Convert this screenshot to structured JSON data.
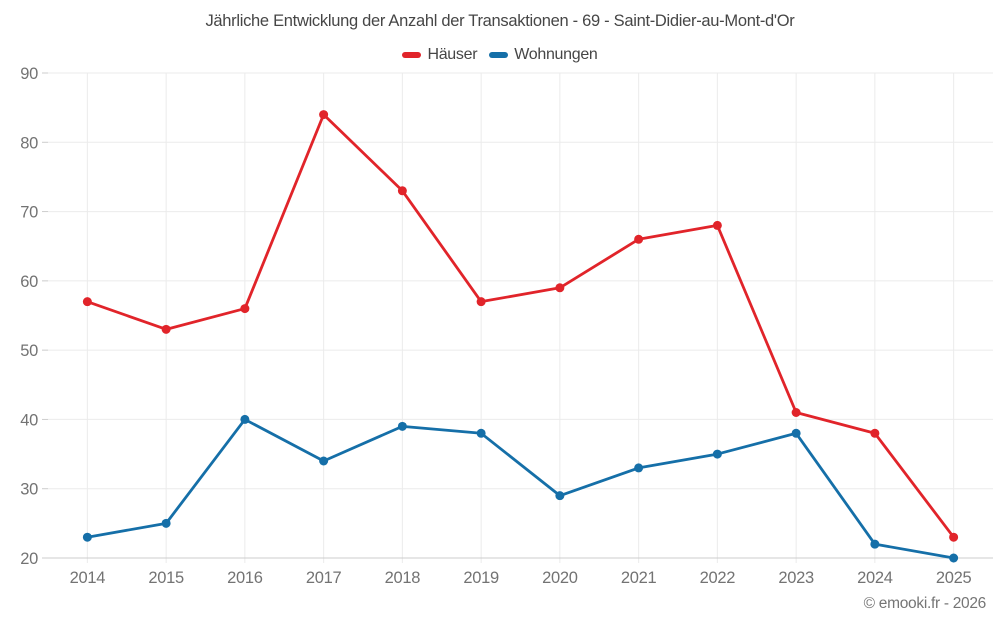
{
  "chart_data": {
    "type": "line",
    "title": "Jährliche Entwicklung der Anzahl der Transaktionen - 69 - Saint-Didier-au-Mont-d'Or",
    "categories": [
      "2014",
      "2015",
      "2016",
      "2017",
      "2018",
      "2019",
      "2020",
      "2021",
      "2022",
      "2023",
      "2024",
      "2025"
    ],
    "series": [
      {
        "name": "Häuser",
        "color": "#e1242a",
        "values": [
          57,
          53,
          56,
          84,
          73,
          57,
          59,
          66,
          68,
          41,
          38,
          23
        ]
      },
      {
        "name": "Wohnungen",
        "color": "#156fa8",
        "values": [
          23,
          25,
          40,
          34,
          39,
          38,
          29,
          33,
          35,
          38,
          22,
          20
        ]
      }
    ],
    "xlabel": "",
    "ylabel": "",
    "ylim": [
      20,
      90
    ],
    "yticks": [
      20,
      30,
      40,
      50,
      60,
      70,
      80,
      90
    ],
    "grid": true,
    "legend_position": "top"
  },
  "footer": {
    "copyright": "© emooki.fr - 2026"
  },
  "theme": {
    "background": "#ffffff",
    "title_color": "#464646",
    "legend_text_color": "#464646",
    "axis_label_color": "#737373",
    "grid_color": "#ebebeb",
    "axis_line_color": "#cccccc"
  }
}
